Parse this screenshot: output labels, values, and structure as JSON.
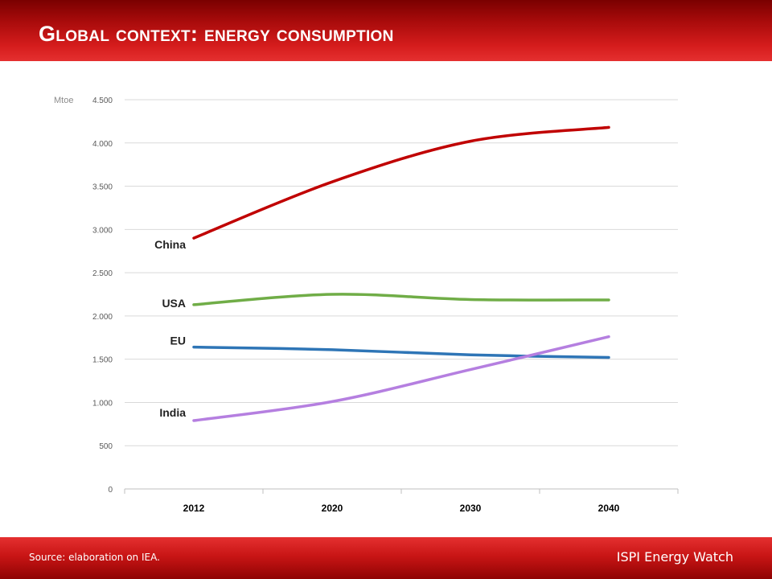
{
  "slide": {
    "title": "Global context: energy consumption",
    "source": "Source: elaboration on IEA.",
    "brand": "ISPI Energy Watch"
  },
  "chart_data": {
    "type": "line",
    "title": "",
    "xlabel": "",
    "ylabel": "Mtoe",
    "categories": [
      "2012",
      "2020",
      "2030",
      "2040"
    ],
    "ylim": [
      0,
      4500
    ],
    "yticks": [
      0,
      500,
      1000,
      1500,
      2000,
      2500,
      3000,
      3500,
      4000,
      4500
    ],
    "ytick_labels": [
      "0",
      "500",
      "1.000",
      "1.500",
      "2.000",
      "2.500",
      "3.000",
      "3.500",
      "4.000",
      "4.500"
    ],
    "grid": true,
    "legend": "none (series labels at line start)",
    "series": [
      {
        "name": "China",
        "values": [
          2900,
          3550,
          4020,
          4180
        ],
        "color": "#c00000"
      },
      {
        "name": "USA",
        "values": [
          2130,
          2250,
          2190,
          2185
        ],
        "color": "#70ad47"
      },
      {
        "name": "EU",
        "values": [
          1640,
          1610,
          1550,
          1520
        ],
        "color": "#2e75b6"
      },
      {
        "name": "India",
        "values": [
          790,
          1010,
          1380,
          1760
        ],
        "color": "#b57fe0"
      }
    ]
  },
  "colors": {
    "accent": "#c00000",
    "grid": "#d9d9d9",
    "axis_text": "#595959"
  }
}
